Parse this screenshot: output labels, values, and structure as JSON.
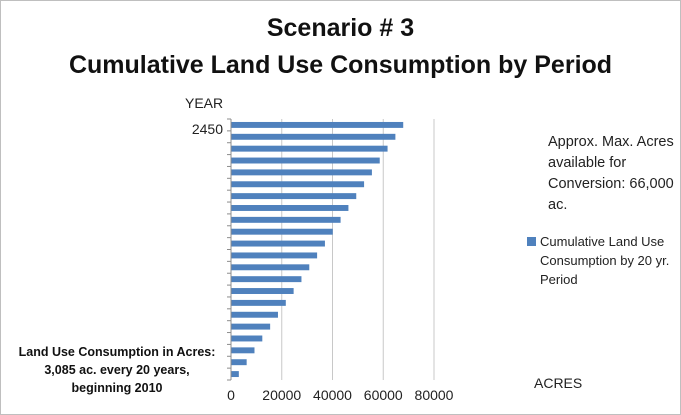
{
  "chart_data": {
    "type": "bar",
    "orientation": "horizontal",
    "title": "Scenario # 3",
    "subtitle": "Cumulative Land Use Consumption by Period",
    "ylabel": "YEAR",
    "xlabel": "ACRES",
    "y_tick_labels": [
      "2450"
    ],
    "x_ticks": [
      0,
      20000,
      40000,
      60000,
      80000
    ],
    "xlim": [
      0,
      80000
    ],
    "grid": "vertical",
    "legend_position": "right",
    "bar_color": "#4f81bd",
    "series": [
      {
        "name": "Cumulative Land Use Consumption by 20 yr. Period",
        "values": [
          3085,
          6170,
          9255,
          12340,
          15425,
          18510,
          21595,
          24680,
          27765,
          30850,
          33935,
          37020,
          40105,
          43190,
          46275,
          49360,
          52445,
          55530,
          58615,
          61700,
          64785,
          67870
        ]
      }
    ],
    "annotation": "Approx. Max. Acres available for Conversion: 66,000 ac.",
    "note_lines": [
      "Land Use Consumption in Acres:",
      "3,085 ac. every 20 years,",
      "beginning 2010"
    ]
  }
}
